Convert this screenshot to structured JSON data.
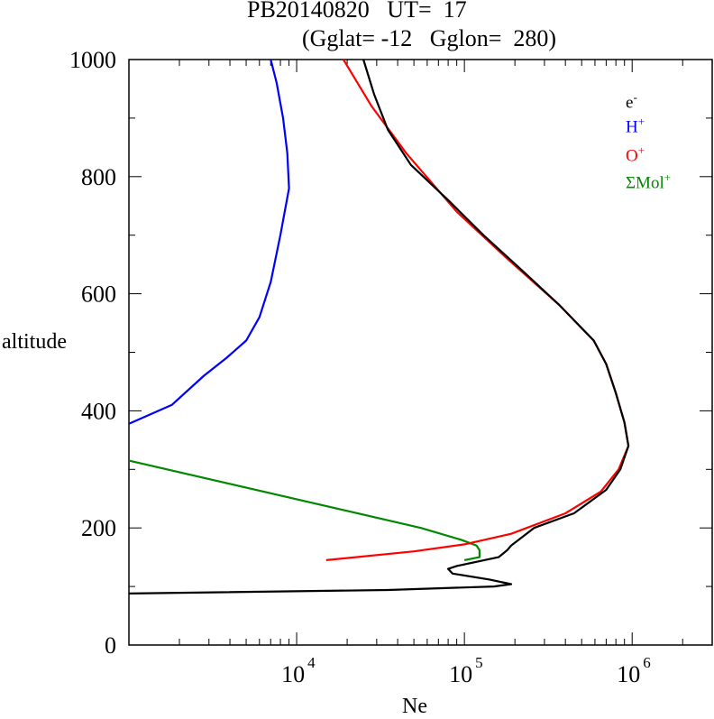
{
  "header": {
    "title_line1": "PB20140820   UT=  17",
    "title_line2": "(Gglat= -12   Gglon=  280)"
  },
  "chart_data": {
    "type": "line",
    "xlabel": "Ne",
    "ylabel": "altitude",
    "xscale": "log",
    "xlim": [
      1000,
      3000000
    ],
    "ylim": [
      0,
      1000
    ],
    "xticks": [
      {
        "base": "10",
        "exp": "4",
        "value": 10000
      },
      {
        "base": "10",
        "exp": "5",
        "value": 100000
      },
      {
        "base": "10",
        "exp": "6",
        "value": 1000000
      }
    ],
    "yticks": [
      "0",
      "200",
      "400",
      "600",
      "800",
      "1000"
    ],
    "legend_position": "top-right",
    "series": [
      {
        "name": "e-",
        "base": "e",
        "sup": "-",
        "color": "#000000",
        "points": [
          [
            1000,
            88
          ],
          [
            35000,
            94
          ],
          [
            150000,
            100
          ],
          [
            190000,
            104
          ],
          [
            140000,
            112
          ],
          [
            85000,
            122
          ],
          [
            80000,
            130
          ],
          [
            90000,
            135
          ],
          [
            160000,
            150
          ],
          [
            180000,
            162
          ],
          [
            190000,
            170
          ],
          [
            260000,
            200
          ],
          [
            450000,
            225
          ],
          [
            700000,
            265
          ],
          [
            850000,
            300
          ],
          [
            950000,
            340
          ],
          [
            900000,
            380
          ],
          [
            800000,
            430
          ],
          [
            700000,
            480
          ],
          [
            590000,
            520
          ],
          [
            370000,
            580
          ],
          [
            220000,
            640
          ],
          [
            130000,
            700
          ],
          [
            80000,
            760
          ],
          [
            48000,
            820
          ],
          [
            35000,
            880
          ],
          [
            29000,
            940
          ],
          [
            25000,
            1000
          ]
        ]
      },
      {
        "name": "H+",
        "base": "H",
        "sup": "+",
        "color": "#0000ff",
        "points": [
          [
            1000,
            378
          ],
          [
            1800,
            410
          ],
          [
            2800,
            460
          ],
          [
            3800,
            490
          ],
          [
            5000,
            520
          ],
          [
            6000,
            560
          ],
          [
            7000,
            620
          ],
          [
            8000,
            700
          ],
          [
            9000,
            780
          ],
          [
            8800,
            840
          ],
          [
            8300,
            900
          ],
          [
            7600,
            960
          ],
          [
            7000,
            1000
          ]
        ]
      },
      {
        "name": "O+",
        "base": "O",
        "sup": "+",
        "color": "#ff0000",
        "points": [
          [
            15000,
            145
          ],
          [
            50000,
            160
          ],
          [
            100000,
            172
          ],
          [
            190000,
            190
          ],
          [
            400000,
            225
          ],
          [
            650000,
            262
          ],
          [
            830000,
            300
          ],
          [
            950000,
            340
          ],
          [
            900000,
            380
          ],
          [
            800000,
            430
          ],
          [
            700000,
            480
          ],
          [
            590000,
            520
          ],
          [
            370000,
            580
          ],
          [
            180000,
            660
          ],
          [
            90000,
            740
          ],
          [
            45000,
            840
          ],
          [
            28000,
            920
          ],
          [
            19000,
            1000
          ]
        ]
      },
      {
        "name": "ΣMol+",
        "base": "ΣMol",
        "sup": "+",
        "color": "#008800",
        "points": [
          [
            1000,
            315
          ],
          [
            55000,
            200
          ],
          [
            95000,
            180
          ],
          [
            118000,
            170
          ],
          [
            123000,
            162
          ],
          [
            123000,
            150
          ],
          [
            100000,
            145
          ]
        ]
      }
    ]
  }
}
